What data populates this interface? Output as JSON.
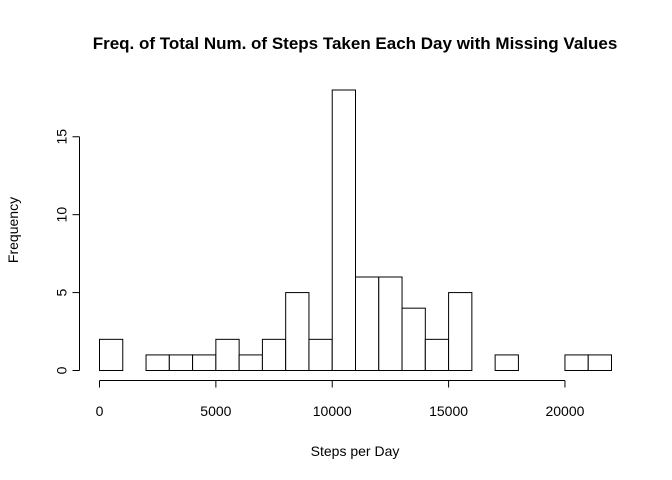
{
  "chart_data": {
    "type": "bar",
    "title": "Freq. of Total Num. of Steps Taken Each Day with Missing Values",
    "xlabel": "Steps per Day",
    "ylabel": "Frequency",
    "bin_width": 1000,
    "bins": [
      {
        "start": 0,
        "end": 1000,
        "count": 2
      },
      {
        "start": 1000,
        "end": 2000,
        "count": 0
      },
      {
        "start": 2000,
        "end": 3000,
        "count": 1
      },
      {
        "start": 3000,
        "end": 4000,
        "count": 1
      },
      {
        "start": 4000,
        "end": 5000,
        "count": 1
      },
      {
        "start": 5000,
        "end": 6000,
        "count": 2
      },
      {
        "start": 6000,
        "end": 7000,
        "count": 1
      },
      {
        "start": 7000,
        "end": 8000,
        "count": 2
      },
      {
        "start": 8000,
        "end": 9000,
        "count": 5
      },
      {
        "start": 9000,
        "end": 10000,
        "count": 2
      },
      {
        "start": 10000,
        "end": 11000,
        "count": 18
      },
      {
        "start": 11000,
        "end": 12000,
        "count": 6
      },
      {
        "start": 12000,
        "end": 13000,
        "count": 6
      },
      {
        "start": 13000,
        "end": 14000,
        "count": 4
      },
      {
        "start": 14000,
        "end": 15000,
        "count": 2
      },
      {
        "start": 15000,
        "end": 16000,
        "count": 5
      },
      {
        "start": 16000,
        "end": 17000,
        "count": 0
      },
      {
        "start": 17000,
        "end": 18000,
        "count": 1
      },
      {
        "start": 18000,
        "end": 19000,
        "count": 0
      },
      {
        "start": 19000,
        "end": 20000,
        "count": 0
      },
      {
        "start": 20000,
        "end": 21000,
        "count": 1
      },
      {
        "start": 21000,
        "end": 22000,
        "count": 1
      }
    ],
    "xlim": [
      0,
      22000
    ],
    "ylim": [
      0,
      18
    ],
    "x_ticks": [
      0,
      5000,
      10000,
      15000,
      20000
    ],
    "y_ticks": [
      0,
      5,
      10,
      15
    ],
    "grid": false,
    "colors": {
      "bar_fill": "#ffffff",
      "bar_stroke": "#000000"
    }
  }
}
